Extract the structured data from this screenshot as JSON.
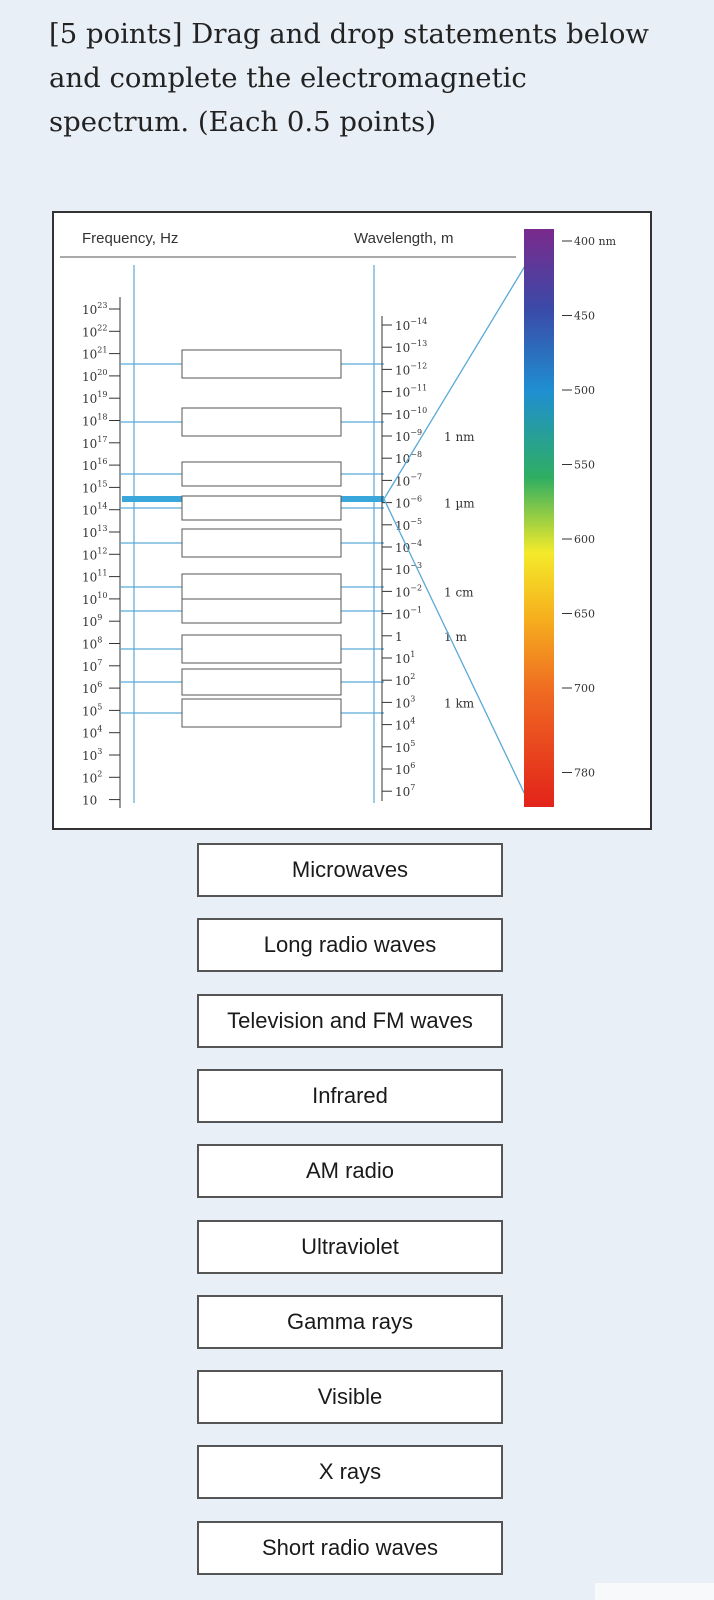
{
  "question": {
    "title": "[5 points] Drag and drop statements below and complete the electromagnetic spectrum. (Each 0.5 points)"
  },
  "figure": {
    "frequency_header": "Frequency, Hz",
    "wavelength_header": "Wavelength, m",
    "frequency_base": "10",
    "frequency_exponents": [
      "23",
      "22",
      "21",
      "20",
      "19",
      "18",
      "17",
      "16",
      "15",
      "14",
      "13",
      "12",
      "11",
      "10",
      "9",
      "8",
      "7",
      "6",
      "5",
      "4",
      "3",
      "2",
      ""
    ],
    "wavelength_labels": [
      {
        "base": "10",
        "exp": "−14"
      },
      {
        "base": "10",
        "exp": "−13"
      },
      {
        "base": "10",
        "exp": "−12"
      },
      {
        "base": "10",
        "exp": "−11"
      },
      {
        "base": "10",
        "exp": "−10"
      },
      {
        "base": "10",
        "exp": "−9"
      },
      {
        "base": "10",
        "exp": "−8"
      },
      {
        "base": "10",
        "exp": "−7"
      },
      {
        "base": "10",
        "exp": "−6"
      },
      {
        "base": "10",
        "exp": "−5"
      },
      {
        "base": "10",
        "exp": "−4"
      },
      {
        "base": "10",
        "exp": "−3"
      },
      {
        "base": "10",
        "exp": "−2"
      },
      {
        "base": "10",
        "exp": "−1"
      },
      {
        "base": "1",
        "exp": ""
      },
      {
        "base": "10",
        "exp": "1"
      },
      {
        "base": "10",
        "exp": "2"
      },
      {
        "base": "10",
        "exp": "3"
      },
      {
        "base": "10",
        "exp": "4"
      },
      {
        "base": "10",
        "exp": "5"
      },
      {
        "base": "10",
        "exp": "6"
      },
      {
        "base": "10",
        "exp": "7"
      }
    ],
    "unit_labels": [
      {
        "label": "1 nm",
        "at_index": 5
      },
      {
        "label": "1 µm",
        "at_index": 8
      },
      {
        "label": "1 cm",
        "at_index": 12
      },
      {
        "label": "1 m",
        "at_index": 14
      },
      {
        "label": "1 km",
        "at_index": 17
      }
    ],
    "visible_scale": [
      "400 nm",
      "450",
      "500",
      "550",
      "600",
      "650",
      "700",
      "780"
    ],
    "drop_slot_count": 10
  },
  "options": [
    {
      "label": "Microwaves"
    },
    {
      "label": "Long radio waves"
    },
    {
      "label": "Television and FM waves"
    },
    {
      "label": "Infrared"
    },
    {
      "label": "AM radio"
    },
    {
      "label": "Ultraviolet"
    },
    {
      "label": "Gamma rays"
    },
    {
      "label": "Visible"
    },
    {
      "label": "X rays"
    },
    {
      "label": "Short radio waves"
    }
  ],
  "colors": {
    "page_background": "#e9eff6",
    "bracket_line": "#5aa9d6",
    "visible_band": "#3aa7dc",
    "spectrum": [
      "#7a2a8c",
      "#3a4aa8",
      "#1f8fd1",
      "#2fae62",
      "#f4ea2a",
      "#f6b11e",
      "#ef6a22",
      "#e2231a"
    ]
  }
}
